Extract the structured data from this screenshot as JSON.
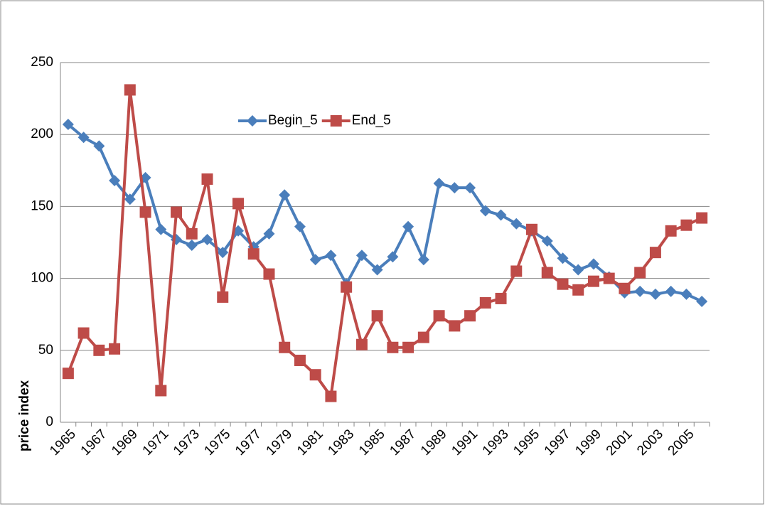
{
  "chart_data": {
    "type": "line",
    "y_label": "price index",
    "categories": [
      "1965",
      null,
      "1967",
      null,
      "1969",
      null,
      "1971",
      null,
      "1973",
      null,
      "1975",
      null,
      "1977",
      null,
      "1979",
      null,
      "1981",
      null,
      "1983",
      null,
      "1985",
      null,
      "1987",
      null,
      "1989",
      null,
      "1991",
      null,
      "1993",
      null,
      "1995",
      null,
      "1997",
      null,
      "1999",
      null,
      "2001",
      null,
      "2003",
      null,
      "2005",
      null
    ],
    "series": [
      {
        "name": "Begin_5",
        "color": "#4a7ebb",
        "marker": "diamond",
        "values": [
          207,
          198,
          192,
          168,
          155,
          170,
          134,
          127,
          123,
          127,
          118,
          133,
          122,
          131,
          158,
          136,
          113,
          116,
          96,
          116,
          106,
          115,
          136,
          113,
          166,
          163,
          163,
          147,
          144,
          138,
          133,
          126,
          114,
          106,
          110,
          101,
          90,
          91,
          89,
          91,
          89,
          84
        ]
      },
      {
        "name": "End_5",
        "color": "#be4b48",
        "marker": "square",
        "values": [
          34,
          62,
          50,
          51,
          231,
          146,
          22,
          146,
          131,
          169,
          87,
          152,
          117,
          103,
          52,
          43,
          33,
          18,
          94,
          54,
          74,
          52,
          52,
          59,
          74,
          67,
          74,
          83,
          86,
          105,
          134,
          104,
          96,
          92,
          98,
          100,
          93,
          104,
          118,
          133,
          137,
          142
        ]
      }
    ],
    "ylim": [
      0,
      250
    ],
    "yticks": [
      0,
      50,
      100,
      150,
      200,
      250
    ],
    "grid": true,
    "legend": "top"
  }
}
